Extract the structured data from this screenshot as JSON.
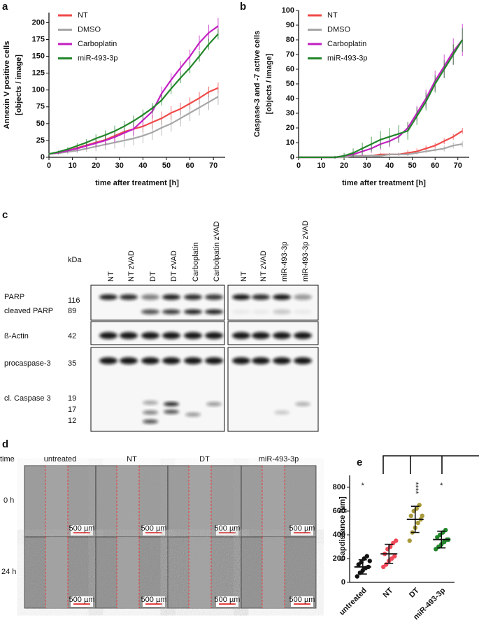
{
  "chart_data": [
    {
      "type": "line",
      "panel_label": "a",
      "ylabel": [
        "Annexin V positive cells",
        "[objects / image]"
      ],
      "xlabel": "time after treatment [h]",
      "x": [
        0,
        4,
        8,
        12,
        16,
        20,
        24,
        28,
        32,
        36,
        40,
        44,
        48,
        52,
        56,
        60,
        64,
        68,
        72
      ],
      "series": [
        {
          "name": "NT",
          "color": "#f04a4a",
          "values": [
            5,
            7,
            10,
            14,
            18,
            22,
            26,
            32,
            38,
            42,
            46,
            52,
            58,
            66,
            72,
            80,
            88,
            97,
            103
          ],
          "errors": [
            1,
            2,
            3,
            4,
            5,
            6,
            7,
            8,
            9,
            9,
            9,
            10,
            10,
            10,
            9,
            9,
            9,
            8,
            8
          ]
        },
        {
          "name": "DMSO",
          "color": "#a6a6a6",
          "values": [
            5,
            6,
            8,
            10,
            13,
            16,
            19,
            22,
            25,
            28,
            32,
            37,
            44,
            50,
            58,
            66,
            74,
            82,
            90
          ],
          "errors": [
            1,
            2,
            3,
            4,
            5,
            7,
            8,
            9,
            10,
            10,
            11,
            11,
            12,
            12,
            12,
            12,
            12,
            12,
            12
          ]
        },
        {
          "name": "Carboplatin",
          "color": "#c21fc2",
          "values": [
            5,
            7,
            10,
            13,
            17,
            21,
            25,
            30,
            36,
            42,
            55,
            68,
            95,
            115,
            133,
            150,
            170,
            185,
            195
          ],
          "errors": [
            1,
            2,
            3,
            4,
            5,
            6,
            7,
            8,
            9,
            10,
            10,
            10,
            10,
            10,
            10,
            10,
            11,
            12,
            12
          ]
        },
        {
          "name": "miR-493-3p",
          "color": "#22862a",
          "values": [
            5,
            8,
            12,
            17,
            22,
            28,
            33,
            39,
            46,
            54,
            63,
            73,
            85,
            102,
            118,
            133,
            150,
            168,
            183
          ],
          "errors": [
            1,
            2,
            3,
            4,
            5,
            6,
            7,
            8,
            8,
            8,
            8,
            8,
            8,
            8,
            8,
            8,
            8,
            8,
            8
          ]
        }
      ],
      "xlim": [
        0,
        75
      ],
      "ylim": [
        0,
        215
      ],
      "xticks": [
        0,
        10,
        20,
        30,
        40,
        50,
        60,
        70
      ],
      "yticks": [
        0,
        25,
        50,
        75,
        100,
        125,
        150,
        175,
        200
      ]
    },
    {
      "type": "line",
      "panel_label": "b",
      "ylabel": [
        "Caspase-3 and -7 active cells",
        "[objects / image]"
      ],
      "xlabel": "time after treatment [h]",
      "x": [
        0,
        4,
        8,
        12,
        16,
        20,
        24,
        28,
        32,
        36,
        40,
        44,
        48,
        52,
        56,
        60,
        64,
        68,
        72
      ],
      "series": [
        {
          "name": "NT",
          "color": "#f04a4a",
          "values": [
            0,
            0,
            0,
            0,
            0,
            0,
            1,
            1,
            1,
            2,
            2,
            2,
            3,
            4,
            6,
            8,
            11,
            14,
            18
          ],
          "errors": [
            0,
            0,
            0,
            0,
            0,
            1,
            1,
            1,
            1,
            1,
            1,
            1,
            2,
            2,
            2,
            2,
            2,
            2,
            2
          ]
        },
        {
          "name": "DMSO",
          "color": "#a6a6a6",
          "values": [
            0,
            0,
            0,
            0,
            0,
            0,
            1,
            1,
            1,
            1,
            2,
            2,
            2,
            3,
            4,
            5,
            6,
            8,
            9
          ],
          "errors": [
            0,
            0,
            0,
            0,
            0,
            1,
            1,
            1,
            1,
            1,
            1,
            1,
            1,
            1,
            1,
            1,
            2,
            2,
            2
          ]
        },
        {
          "name": "Carboplatin",
          "color": "#c21fc2",
          "values": [
            0,
            0,
            0,
            0,
            0,
            1,
            2,
            4,
            6,
            9,
            11,
            14,
            20,
            30,
            40,
            52,
            62,
            72,
            80
          ],
          "errors": [
            0,
            0,
            0,
            0,
            1,
            1,
            2,
            3,
            3,
            4,
            4,
            4,
            4,
            5,
            6,
            7,
            8,
            9,
            11
          ]
        },
        {
          "name": "miR-493-3p",
          "color": "#22862a",
          "values": [
            0,
            0,
            0,
            0,
            0,
            1,
            3,
            6,
            9,
            12,
            14,
            16,
            18,
            28,
            38,
            50,
            60,
            70,
            80
          ],
          "errors": [
            0,
            0,
            0,
            0,
            1,
            2,
            3,
            4,
            5,
            6,
            6,
            6,
            6,
            6,
            6,
            6,
            6,
            7,
            8
          ]
        }
      ],
      "xlim": [
        0,
        75
      ],
      "ylim": [
        0,
        100
      ],
      "xticks": [
        0,
        10,
        20,
        30,
        40,
        50,
        60,
        70
      ],
      "yticks": [
        0,
        10,
        20,
        30,
        40,
        50,
        60,
        70,
        80,
        90,
        100
      ]
    },
    {
      "type": "dot",
      "panel_label": "e",
      "ylabel": "Gapdistance [µm]",
      "categories": [
        "untreated",
        "NT",
        "DT",
        "miR-493-3p"
      ],
      "colors": [
        "#111111",
        "#f04a5a",
        "#a89a3a",
        "#22862a"
      ],
      "points": [
        [
          50,
          80,
          100,
          120,
          130,
          150,
          170,
          200,
          220,
          180
        ],
        [
          130,
          150,
          180,
          200,
          220,
          240,
          280,
          300,
          330,
          350
        ],
        [
          350,
          420,
          460,
          500,
          530,
          560,
          600,
          620,
          650,
          560
        ],
        [
          280,
          300,
          320,
          340,
          360,
          380,
          400,
          420,
          440,
          360
        ]
      ],
      "means": [
        130,
        240,
        530,
        360
      ],
      "sd": [
        60,
        80,
        110,
        70
      ],
      "annotations": [
        "*",
        null,
        "****",
        "*"
      ],
      "ylim": [
        0,
        900
      ],
      "yticks": [
        0,
        200,
        400,
        600,
        800
      ]
    }
  ],
  "blot": {
    "panel_label": "c",
    "kda_header": "kDa",
    "lanes_left": [
      "NT",
      "NT zVAD",
      "DT",
      "DT zVAD",
      "Carboplatin",
      "Carbolpatin zVAD"
    ],
    "lanes_right": [
      "NT",
      "NT zVAD",
      "miR-493-3p",
      "miR-493-3p zVAD"
    ],
    "rows": [
      {
        "label": "PARP",
        "kda": [
          116
        ]
      },
      {
        "label": "cleaved PARP",
        "kda": [
          89
        ]
      },
      {
        "label": "ß-Actin",
        "kda": [
          42
        ]
      },
      {
        "label": "procaspase-3",
        "kda": [
          35
        ]
      },
      {
        "label": "cl. Caspase 3",
        "kda": [
          19,
          17,
          12
        ]
      }
    ]
  },
  "scratch": {
    "panel_label": "d",
    "row_header": "time",
    "columns": [
      "untreated",
      "NT",
      "DT",
      "miR-493-3p"
    ],
    "rows": [
      "0 h",
      "24 h"
    ],
    "scale_bar": "500 µm"
  }
}
